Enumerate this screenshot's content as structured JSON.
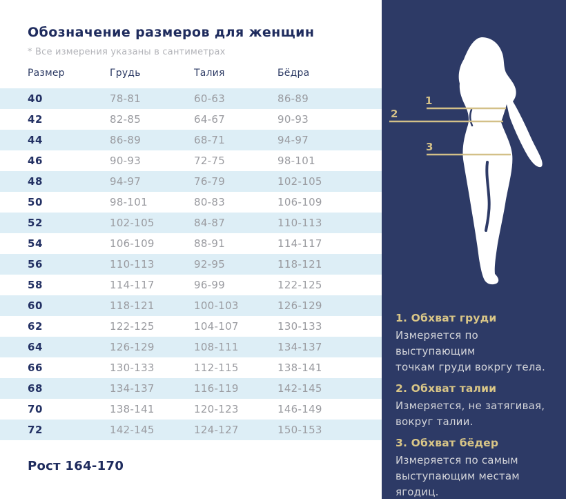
{
  "page": {
    "title": "Обозначение размеров для женщин",
    "note": "* Все измерения указаны в сантиметрах",
    "height_label": "Рост 164-170"
  },
  "table": {
    "columns": [
      "Размер",
      "Грудь",
      "Талия",
      "Бёдра"
    ],
    "rows": [
      {
        "size": "40",
        "chest": "78-81",
        "waist": "60-63",
        "hips": "86-89"
      },
      {
        "size": "42",
        "chest": "82-85",
        "waist": "64-67",
        "hips": "90-93"
      },
      {
        "size": "44",
        "chest": "86-89",
        "waist": "68-71",
        "hips": "94-97"
      },
      {
        "size": "46",
        "chest": "90-93",
        "waist": "72-75",
        "hips": "98-101"
      },
      {
        "size": "48",
        "chest": "94-97",
        "waist": "76-79",
        "hips": "102-105"
      },
      {
        "size": "50",
        "chest": "98-101",
        "waist": "80-83",
        "hips": "106-109"
      },
      {
        "size": "52",
        "chest": "102-105",
        "waist": "84-87",
        "hips": "110-113"
      },
      {
        "size": "54",
        "chest": "106-109",
        "waist": "88-91",
        "hips": "114-117"
      },
      {
        "size": "56",
        "chest": "110-113",
        "waist": "92-95",
        "hips": "118-121"
      },
      {
        "size": "58",
        "chest": "114-117",
        "waist": "96-99",
        "hips": "122-125"
      },
      {
        "size": "60",
        "chest": "118-121",
        "waist": "100-103",
        "hips": "126-129"
      },
      {
        "size": "62",
        "chest": "122-125",
        "waist": "104-107",
        "hips": "130-133"
      },
      {
        "size": "64",
        "chest": "126-129",
        "waist": "108-111",
        "hips": "134-137"
      },
      {
        "size": "66",
        "chest": "130-133",
        "waist": "112-115",
        "hips": "138-141"
      },
      {
        "size": "68",
        "chest": "134-137",
        "waist": "116-119",
        "hips": "142-145"
      },
      {
        "size": "70",
        "chest": "138-141",
        "waist": "120-123",
        "hips": "146-149"
      },
      {
        "size": "72",
        "chest": "142-145",
        "waist": "124-127",
        "hips": "150-153"
      }
    ]
  },
  "figure": {
    "labels": [
      "1",
      "2",
      "3"
    ]
  },
  "legend": {
    "items": [
      {
        "title": "1. Обхват груди",
        "lines": [
          "Измеряется по  выступающим",
          "точкам груди вокргу тела."
        ]
      },
      {
        "title": "2. Обхват талии",
        "lines": [
          "Измеряется, не затягивая,",
          "вокруг талии."
        ]
      },
      {
        "title": "3. Обхват бёдер",
        "lines": [
          "Измеряется по самым",
          "выступающим местам ягодиц."
        ]
      }
    ]
  },
  "colors": {
    "panel_navy": "#2d3a66",
    "heading_navy": "#1f2c5e",
    "accent_gold": "#d3c088",
    "legend_gold": "#d9c687",
    "row_highlight_blue": "#ddeef6",
    "value_gray": "#9a9ba0"
  }
}
